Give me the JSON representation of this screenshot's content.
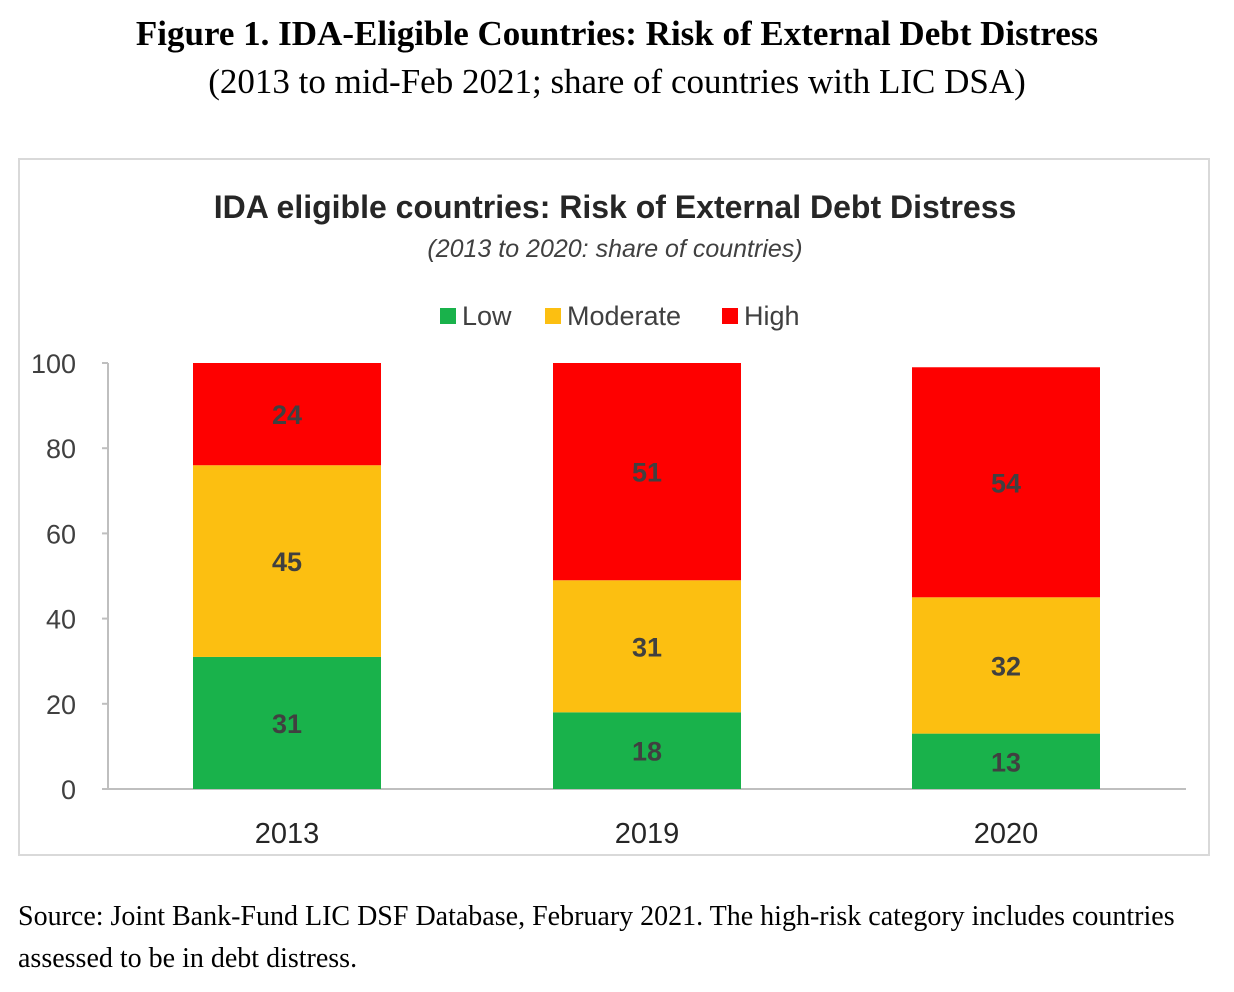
{
  "figure": {
    "title": "Figure 1. IDA-Eligible Countries: Risk of External Debt Distress",
    "subtitle": "(2013 to mid-Feb 2021; share of countries with LIC DSA)",
    "source": "Source: Joint Bank-Fund LIC DSF Database, February 2021. The high-risk category includes countries assessed to be in debt distress."
  },
  "chart_data": {
    "type": "bar",
    "stacked": true,
    "title": "IDA eligible countries: Risk of External Debt Distress",
    "subtitle": "(2013 to 2020: share of countries)",
    "categories": [
      "2013",
      "2019",
      "2020"
    ],
    "series": [
      {
        "name": "Low",
        "values": [
          31,
          18,
          13
        ],
        "color": "#19b24b"
      },
      {
        "name": "Moderate",
        "values": [
          45,
          31,
          32
        ],
        "color": "#fcbf11"
      },
      {
        "name": "High",
        "values": [
          24,
          51,
          54
        ],
        "color": "#fe0000"
      }
    ],
    "ylim": [
      0,
      100
    ],
    "yticks": [
      0,
      20,
      40,
      60,
      80,
      100
    ],
    "legend_position": "top-center",
    "grid": false,
    "label_color": "#404040"
  }
}
